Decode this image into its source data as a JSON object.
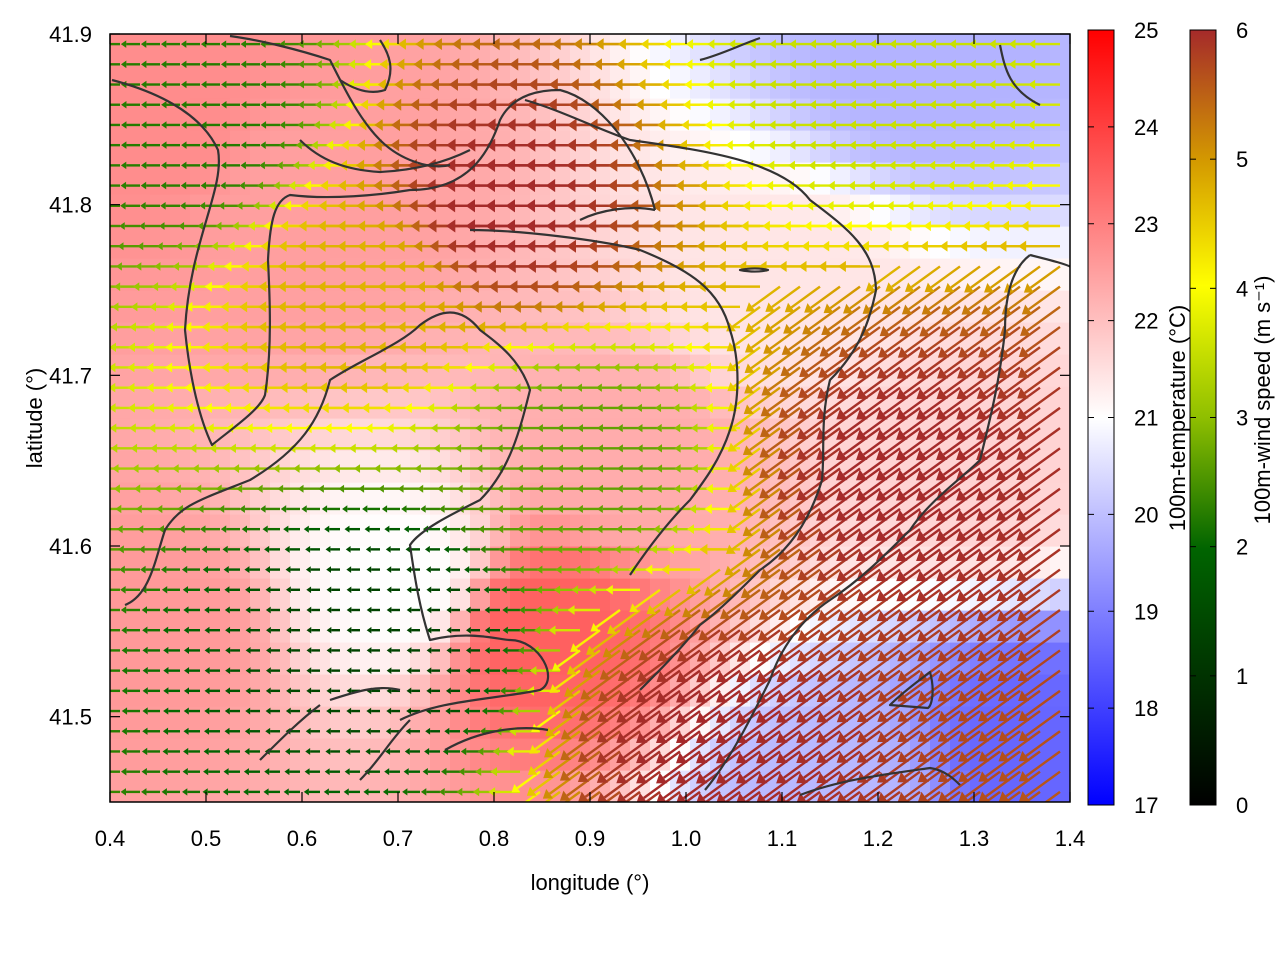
{
  "chart_data": {
    "type": "heatmap",
    "description_of_layers": [
      "temperature field",
      "wind vectors",
      "coastline/contours"
    ],
    "xlabel": "longitude (°)",
    "ylabel": "latitude (°)",
    "xlim": [
      0.4,
      1.4
    ],
    "ylim": [
      41.45,
      41.9
    ],
    "x_ticks": [
      "0.4",
      "0.5",
      "0.6",
      "0.7",
      "0.8",
      "0.9",
      "1.0",
      "1.1",
      "1.2",
      "1.3",
      "1.4"
    ],
    "y_ticks": [
      "41.5",
      "41.6",
      "41.7",
      "41.8",
      "41.9"
    ],
    "temperature_colorbar": {
      "label": "100m-temperature (°C)",
      "range": [
        17,
        25
      ],
      "ticks": [
        "17",
        "18",
        "19",
        "20",
        "21",
        "22",
        "23",
        "24",
        "25"
      ],
      "colors": [
        "#0000ff",
        "#ffffff",
        "#ff0000"
      ]
    },
    "wind_colorbar": {
      "label": "100m-wind speed (m s⁻¹)",
      "range": [
        0,
        6
      ],
      "ticks": [
        "0",
        "1",
        "2",
        "3",
        "4",
        "5",
        "6"
      ],
      "colors": [
        "#000000",
        "#006400",
        "#8fbf00",
        "#ffff00",
        "#d49a00",
        "#a52a2a"
      ]
    },
    "temperature_field_approx": [
      {
        "lon": 0.45,
        "lat": 41.85,
        "t": 22.8
      },
      {
        "lon": 0.6,
        "lat": 41.8,
        "t": 22.5
      },
      {
        "lon": 0.45,
        "lat": 41.55,
        "t": 22.6
      },
      {
        "lon": 0.7,
        "lat": 41.58,
        "t": 21.0
      },
      {
        "lon": 0.85,
        "lat": 41.55,
        "t": 23.5
      },
      {
        "lon": 0.95,
        "lat": 41.65,
        "t": 22.3
      },
      {
        "lon": 1.25,
        "lat": 41.88,
        "t": 19.8
      },
      {
        "lon": 1.37,
        "lat": 41.48,
        "t": 18.6
      },
      {
        "lon": 1.15,
        "lat": 41.45,
        "t": 19.9
      },
      {
        "lon": 1.3,
        "lat": 41.65,
        "t": 21.7
      },
      {
        "lon": 1.1,
        "lat": 41.75,
        "t": 21.4
      }
    ],
    "wind_field_approx": [
      {
        "lon": 0.5,
        "lat": 41.85,
        "speed": 1.5,
        "dir": "from east"
      },
      {
        "lon": 0.7,
        "lat": 41.75,
        "speed": 4.5,
        "dir": "from east"
      },
      {
        "lon": 0.85,
        "lat": 41.8,
        "speed": 6.0,
        "dir": "from east"
      },
      {
        "lon": 0.7,
        "lat": 41.55,
        "speed": 0.8,
        "dir": "from east"
      },
      {
        "lon": 0.9,
        "lat": 41.65,
        "speed": 2.0,
        "dir": "from east"
      },
      {
        "lon": 1.25,
        "lat": 41.65,
        "speed": 6.0,
        "dir": "from northeast"
      },
      {
        "lon": 1.2,
        "lat": 41.88,
        "speed": 3.0,
        "dir": "from east"
      },
      {
        "lon": 1.05,
        "lat": 41.5,
        "speed": 6.0,
        "dir": "from northeast"
      }
    ]
  }
}
